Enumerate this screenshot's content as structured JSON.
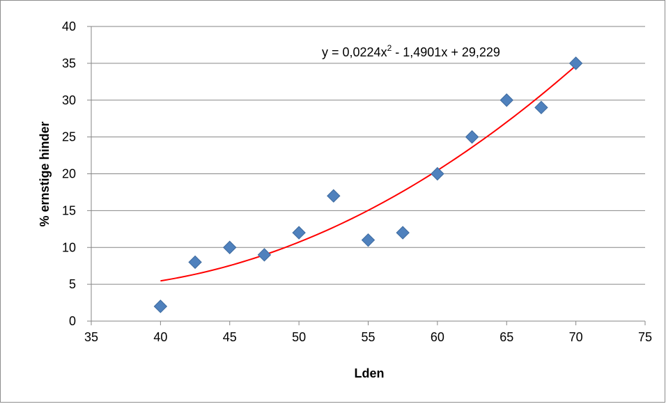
{
  "chart_data": {
    "type": "scatter",
    "title": "",
    "xlabel": "Lden",
    "ylabel": "% ernstige hinder",
    "xlim": [
      35,
      75
    ],
    "ylim": [
      0,
      40
    ],
    "xticks": [
      35,
      40,
      45,
      50,
      55,
      60,
      65,
      70,
      75
    ],
    "yticks": [
      0,
      5,
      10,
      15,
      20,
      25,
      30,
      35,
      40
    ],
    "grid": "horizontal",
    "legend": "none",
    "series": [
      {
        "color": "#4F81BD",
        "marker": "diamond",
        "points": [
          {
            "x": 40,
            "y": 2
          },
          {
            "x": 42.5,
            "y": 8
          },
          {
            "x": 45,
            "y": 10
          },
          {
            "x": 47.5,
            "y": 9
          },
          {
            "x": 50,
            "y": 12
          },
          {
            "x": 52.5,
            "y": 17
          },
          {
            "x": 55,
            "y": 11
          },
          {
            "x": 57.5,
            "y": 12
          },
          {
            "x": 60,
            "y": 20
          },
          {
            "x": 62.5,
            "y": 25
          },
          {
            "x": 65,
            "y": 30
          },
          {
            "x": 67.5,
            "y": 29
          },
          {
            "x": 70,
            "y": 35
          }
        ]
      }
    ],
    "trendline": {
      "type": "polynomial",
      "coefficients": [
        0.0224,
        -1.4901,
        29.229
      ],
      "x_range": [
        40,
        70
      ],
      "color": "#FF0000",
      "equation_label": {
        "prefix": "y = 0,0224x",
        "exponent": "2",
        "suffix": " - 1,4901x + 29,229"
      }
    }
  }
}
